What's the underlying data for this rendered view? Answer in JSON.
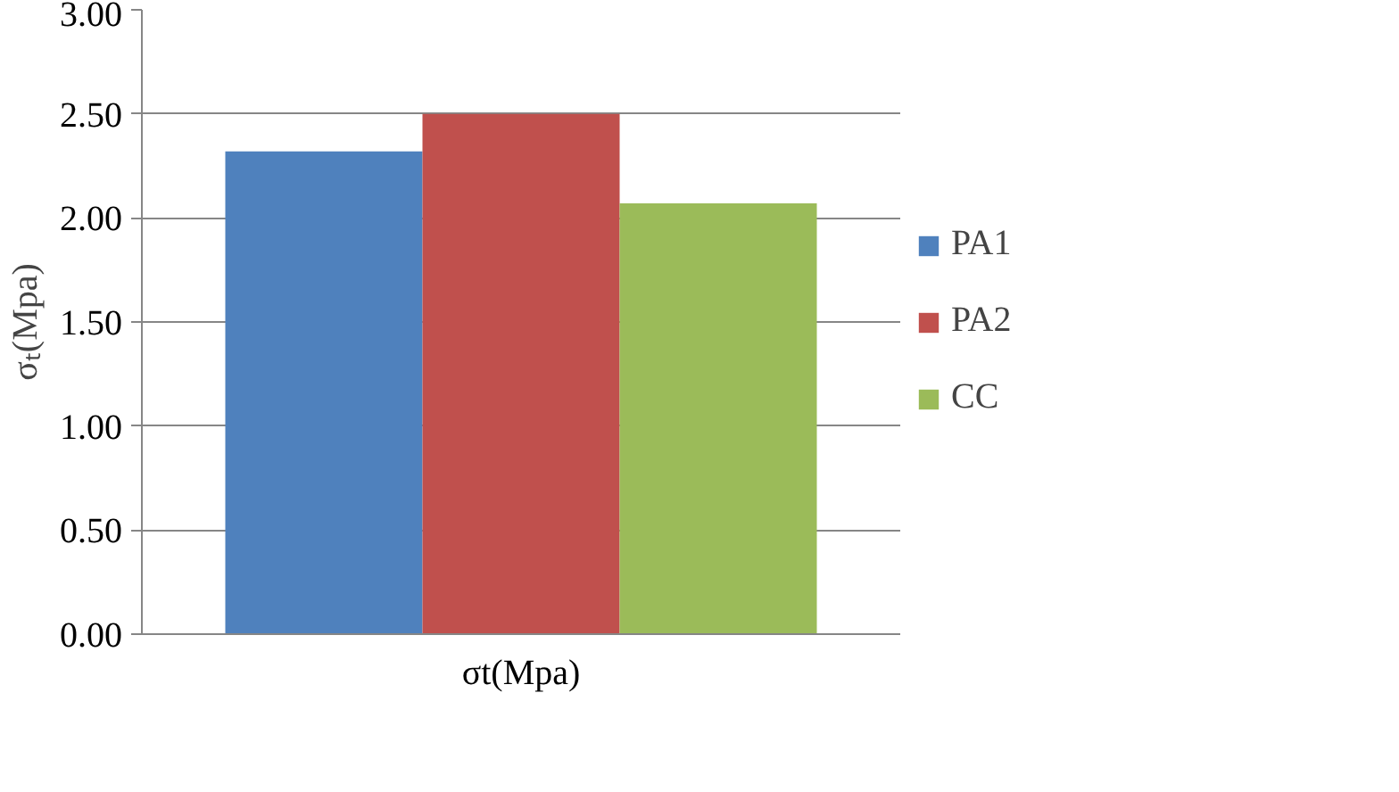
{
  "chart_data": {
    "type": "bar",
    "ylabel": "σₜ(Mpa)",
    "categories": [
      "σt(Mpa)"
    ],
    "series": [
      {
        "name": "PA1",
        "color": "#4f81bd",
        "values": [
          2.32
        ]
      },
      {
        "name": "PA2",
        "color": "#c0504d",
        "values": [
          2.5
        ]
      },
      {
        "name": "CC",
        "color": "#9bbb59",
        "values": [
          2.07
        ]
      }
    ],
    "ylim": [
      0,
      3
    ],
    "yticks": [
      {
        "value": 0,
        "label": "0.00"
      },
      {
        "value": 0.5,
        "label": "0.50"
      },
      {
        "value": 1,
        "label": "1.00"
      },
      {
        "value": 1.5,
        "label": "1.50"
      },
      {
        "value": 2,
        "label": "2.00"
      },
      {
        "value": 2.5,
        "label": "2.50"
      },
      {
        "value": 3,
        "label": "3.00"
      }
    ],
    "grid": "y",
    "legend": "right"
  }
}
